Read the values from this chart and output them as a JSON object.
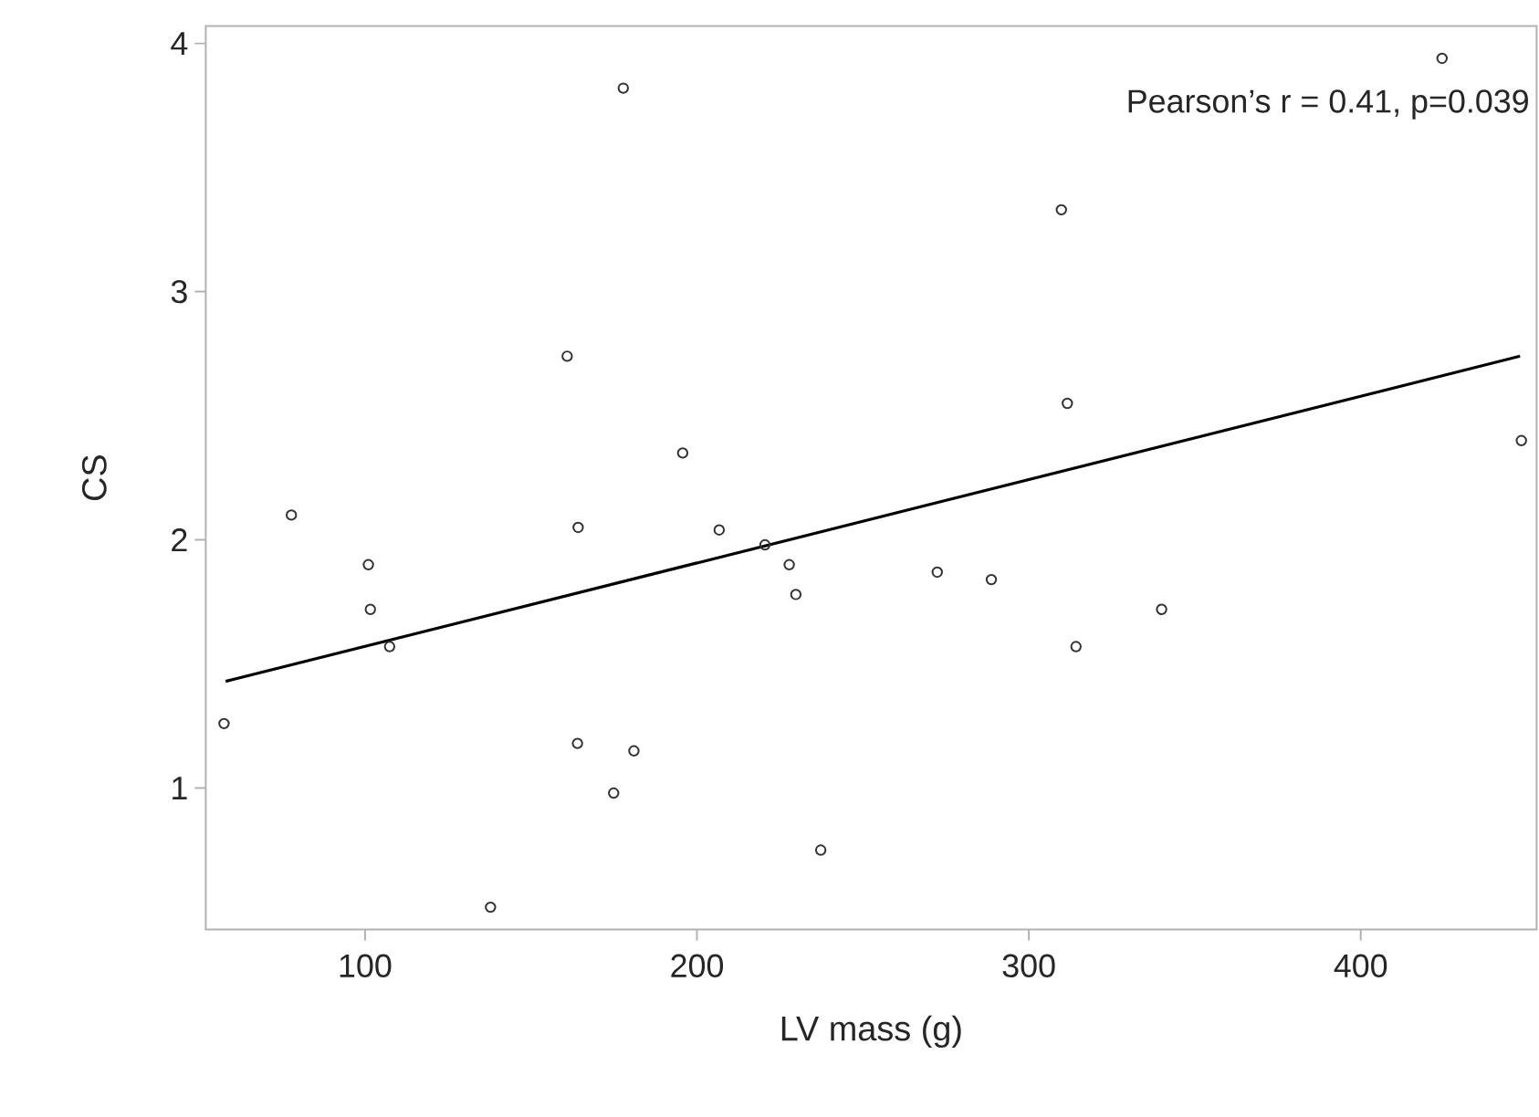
{
  "chart_data": {
    "type": "scatter",
    "xlabel": "LV mass (g)",
    "ylabel": "CS",
    "xlim": [
      52,
      453
    ],
    "ylim": [
      0.43,
      4.07
    ],
    "xticks": [
      100,
      200,
      300,
      400
    ],
    "yticks": [
      1,
      2,
      3,
      4
    ],
    "grid": false,
    "marker": "circle",
    "annotations": [
      "Pearson’s r = 0.41, p=0.039"
    ],
    "series": [
      {
        "color": "#333333",
        "x": [
          177.8,
          160.9,
          195.7,
          424.5,
          309.8,
          311.6,
          448.4,
          77.8,
          101,
          101.6,
          107.4,
          57.5,
          164.2,
          206.7,
          220.5,
          227.8,
          229.8,
          164,
          181,
          174.9,
          237.3,
          137.8,
          272.4,
          288.7,
          340,
          314.2
        ],
        "values": [
          3.82,
          2.74,
          2.35,
          3.94,
          3.33,
          2.55,
          2.4,
          2.1,
          1.9,
          1.72,
          1.57,
          1.26,
          2.05,
          2.04,
          1.98,
          1.9,
          1.78,
          1.18,
          1.15,
          0.98,
          0.75,
          0.52,
          1.87,
          1.84,
          1.72,
          1.57
        ]
      },
      {
        "type": "line",
        "color": "#000000",
        "marker": "none",
        "x": [
          58,
          448
        ],
        "values": [
          1.43,
          2.74
        ]
      }
    ]
  }
}
